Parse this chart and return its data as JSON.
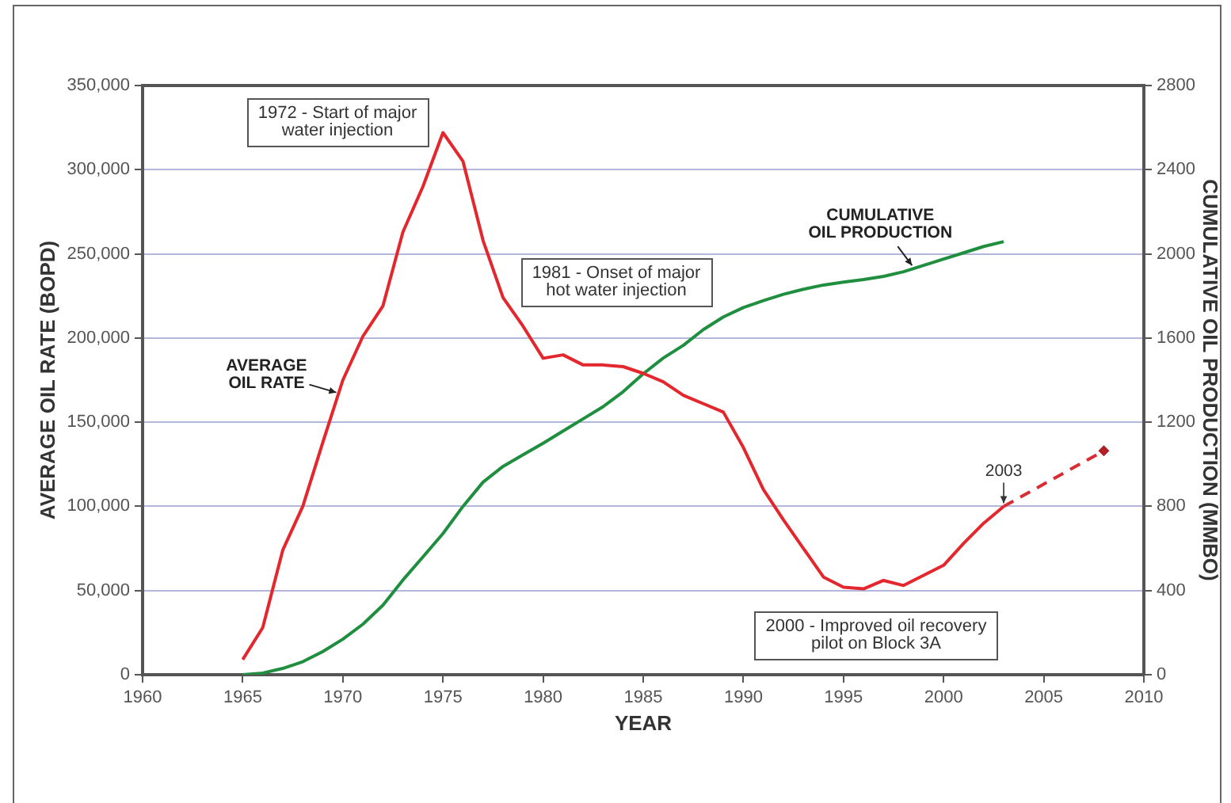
{
  "chart_data": {
    "type": "line",
    "xlabel": "YEAR",
    "ylabel": "AVERAGE OIL RATE (BOPD)",
    "y2label": "CUMULATIVE OIL PRODUCTION (MMBO)",
    "x": [
      1965,
      1966,
      1967,
      1968,
      1969,
      1970,
      1971,
      1972,
      1973,
      1974,
      1975,
      1976,
      1977,
      1978,
      1979,
      1980,
      1981,
      1982,
      1983,
      1984,
      1985,
      1986,
      1987,
      1988,
      1989,
      1990,
      1991,
      1992,
      1993,
      1994,
      1995,
      1996,
      1997,
      1998,
      1999,
      2000,
      2001,
      2002,
      2003,
      2008
    ],
    "series": [
      {
        "name": "AVERAGE\nOIL RATE",
        "color": "#e4262d",
        "values": [
          9000,
          28000,
          74000,
          100000,
          138000,
          175000,
          201000,
          219000,
          263000,
          290000,
          322000,
          305000,
          258000,
          224000,
          207000,
          188000,
          190000,
          184000,
          184000,
          183000,
          179000,
          174000,
          166000,
          161000,
          156000,
          135000,
          110000,
          92000,
          75000,
          58000,
          52000,
          51000,
          56000,
          53000,
          59000,
          65000,
          78000,
          90000,
          100000,
          null
        ]
      },
      {
        "name": "CUMULATIVE\nOIL PRODUCTION",
        "color": "#1f8f3f",
        "axis": "y2",
        "values": [
          0,
          8,
          30,
          62,
          110,
          169,
          240,
          330,
          450,
          560,
          671,
          800,
          915,
          990,
          1045,
          1100,
          1158,
          1216,
          1274,
          1345,
          1430,
          1505,
          1565,
          1640,
          1700,
          1745,
          1778,
          1808,
          1832,
          1852,
          1866,
          1878,
          1893,
          1915,
          1945,
          1975,
          2005,
          2035,
          2058,
          null
        ]
      },
      {
        "color": "#d92c33",
        "line_style": "dashed",
        "values": [
          null,
          null,
          null,
          null,
          null,
          null,
          null,
          null,
          null,
          null,
          null,
          null,
          null,
          null,
          null,
          null,
          null,
          null,
          null,
          null,
          null,
          null,
          null,
          null,
          null,
          null,
          null,
          null,
          null,
          null,
          null,
          null,
          null,
          null,
          null,
          null,
          null,
          null,
          100000,
          133000
        ]
      },
      {
        "type": "scatter",
        "color": "#b01e28",
        "marker": "diamond",
        "values": [
          null,
          null,
          null,
          null,
          null,
          null,
          null,
          null,
          null,
          null,
          null,
          null,
          null,
          null,
          null,
          null,
          null,
          null,
          null,
          null,
          null,
          null,
          null,
          null,
          null,
          null,
          null,
          null,
          null,
          null,
          null,
          null,
          null,
          null,
          null,
          null,
          null,
          null,
          null,
          133000
        ]
      }
    ],
    "xlim": [
      1960,
      2010
    ],
    "xticks": [
      1960,
      1965,
      1970,
      1975,
      1980,
      1985,
      1990,
      1995,
      2000,
      2005,
      2010
    ],
    "ylim": [
      0,
      350000
    ],
    "yticks": [
      0,
      {
        "value": 50000,
        "label": "50,000"
      },
      {
        "value": 100000,
        "label": "100,000"
      },
      {
        "value": 150000,
        "label": "150,000"
      },
      {
        "value": 200000,
        "label": "200,000"
      },
      {
        "value": 250000,
        "label": "250,000"
      },
      {
        "value": 300000,
        "label": "300,000"
      },
      {
        "value": 350000,
        "label": "350,000"
      }
    ],
    "y2lim": [
      0,
      2800
    ],
    "y2ticks": [
      0,
      400,
      800,
      1200,
      1600,
      2000,
      2400,
      2800
    ],
    "grid": "y",
    "legend": false,
    "marker": "none",
    "line_style": "solid",
    "annotations": [
      "1972 - Start of major\nwater injection",
      "1981 - Onset of major\nhot water injection",
      "2000 - Improved oil recovery\npilot on Block 3A",
      {
        "text": "2003",
        "x": 2003,
        "y": 100000
      }
    ]
  }
}
